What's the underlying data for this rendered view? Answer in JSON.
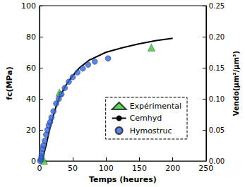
{
  "chart_data": {
    "type": "line",
    "x_label": "Temps (heures)",
    "y_label": "fc(MPa)",
    "y2_label": "Vendo(µm²/µm³)",
    "xlim": [
      0,
      250
    ],
    "xticks": [
      0,
      50,
      100,
      150,
      200,
      250
    ],
    "ylim": [
      0,
      100
    ],
    "yticks": [
      0,
      20,
      40,
      60,
      80,
      100
    ],
    "y2lim": [
      0,
      0.25
    ],
    "y2ticks": [
      {
        "value": 0,
        "label": "0.00"
      },
      {
        "value": 0.05,
        "label": "0.05"
      },
      {
        "value": 0.1,
        "label": "0.10"
      },
      {
        "value": 0.15,
        "label": "0.15"
      },
      {
        "value": 0.2,
        "label": "0.20"
      },
      {
        "value": 0.25,
        "label": "0.25"
      }
    ],
    "legend": "right",
    "grid": false,
    "series": [
      {
        "name": "Expérimental",
        "type": "scatter",
        "marker": "triangle",
        "color": "#33cc33",
        "x": [
          7,
          30,
          168
        ],
        "values": [
          0,
          44,
          73
        ]
      },
      {
        "name": "Cemhyd",
        "type": "line",
        "line_style": "solid",
        "color": "#000000",
        "x": [
          3,
          5,
          10,
          15,
          20,
          25,
          30,
          40,
          50,
          60,
          75,
          100,
          125,
          150,
          175,
          200
        ],
        "values": [
          0,
          2,
          10,
          20,
          28,
          35,
          41,
          49,
          55,
          60,
          65,
          70,
          73,
          75.5,
          77.5,
          79
        ]
      },
      {
        "name": "Hymostruc",
        "type": "scatter",
        "marker": "circle",
        "color": "#3366dd",
        "x": [
          1,
          2,
          3,
          4,
          5,
          6,
          8,
          10,
          12,
          14,
          16,
          18,
          21,
          25,
          29,
          33,
          38,
          44,
          50,
          57,
          65,
          73,
          83,
          103
        ],
        "values": [
          0,
          1,
          3,
          5,
          8,
          10,
          13,
          17,
          20,
          23,
          25,
          28,
          32,
          37,
          40,
          43,
          47,
          51,
          54,
          57,
          59.5,
          62,
          64,
          66
        ]
      }
    ]
  }
}
